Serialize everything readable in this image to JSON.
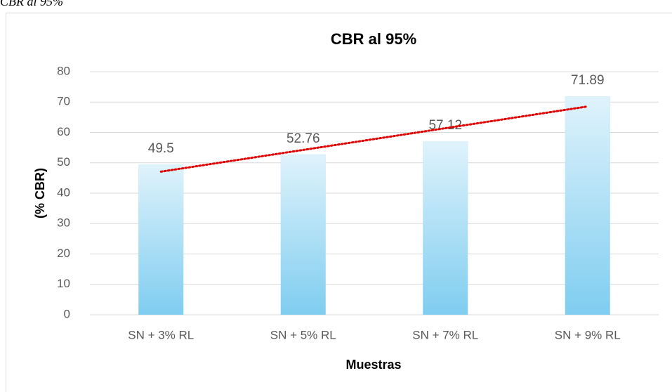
{
  "caption": "CBR al 95%",
  "chart_data": {
    "type": "bar",
    "title": "CBR al 95%",
    "x_label": "Muestras",
    "y_label": "(% CBR)",
    "categories": [
      "SN + 3% RL",
      "SN + 5% RL",
      "SN + 7% RL",
      "SN + 9% RL"
    ],
    "values": [
      49.5,
      52.76,
      57.12,
      71.89
    ],
    "color": "#7fcdf0",
    "ylim": [
      0,
      80
    ],
    "yticks": [
      0,
      10,
      20,
      30,
      40,
      50,
      60,
      70,
      80
    ],
    "grid": true,
    "trendline": "linear",
    "trendline_color": "#e00000"
  }
}
